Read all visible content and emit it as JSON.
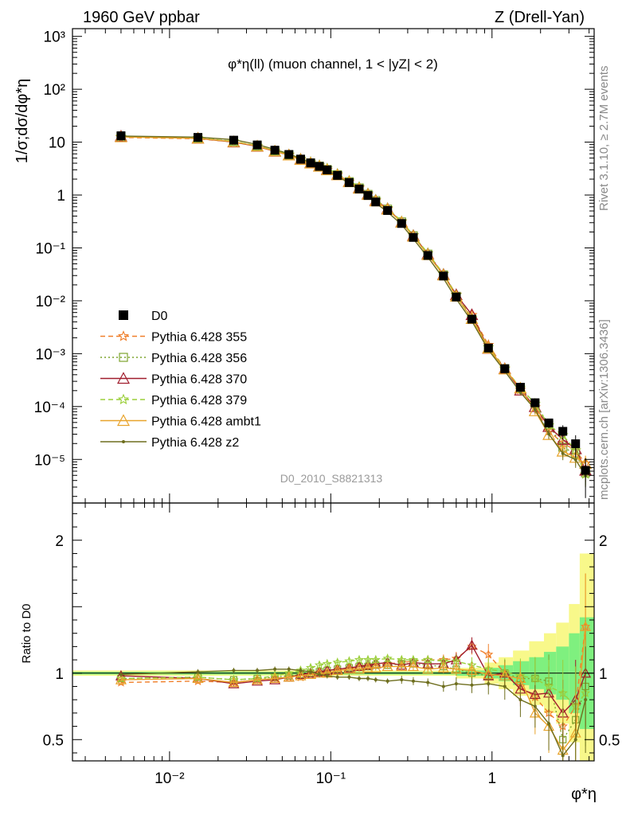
{
  "header": {
    "left": "1960 GeV ppbar",
    "right": "Z (Drell-Yan)"
  },
  "side": {
    "rivet": "Rivet 3.1.10, ≥ 2.7M events",
    "site": "mcplots.cern.ch [arXiv:1306.3436]"
  },
  "chart_data": {
    "type": "line",
    "title": "φ*η(ll) (muon channel, 1 < |yZ| < 2)",
    "analysis": "D0_2010_S8821313",
    "xlabel": "φ*η",
    "ylabel": "1/σ;dσ/dφ*η",
    "ratio_ylabel": "Ratio to D0",
    "xscale": "log",
    "yscale": "log",
    "xlim": [
      0.0025,
      4.3
    ],
    "ylim": [
      1.5e-06,
      1400
    ],
    "ratio_ylim": [
      0.34,
      2.28
    ],
    "xticks": [
      "10⁻²",
      "10⁻¹",
      "1"
    ],
    "yticks": [
      "10³",
      "10²",
      "10",
      "1",
      "10⁻¹",
      "10⁻²",
      "10⁻³",
      "10⁻⁴",
      "10⁻⁵"
    ],
    "ratio_yticks": [
      "2",
      "1",
      "0.5"
    ],
    "legend_position": "bottom-left",
    "x": [
      0.005,
      0.015,
      0.025,
      0.035,
      0.045,
      0.055,
      0.065,
      0.075,
      0.085,
      0.095,
      0.11,
      0.13,
      0.15,
      0.17,
      0.19,
      0.225,
      0.275,
      0.325,
      0.4,
      0.5,
      0.6,
      0.75,
      0.95,
      1.2,
      1.5,
      1.85,
      2.25,
      2.75,
      3.3,
      3.8
    ],
    "series": [
      {
        "name": "D0",
        "color": "#000000",
        "marker": "square",
        "values": [
          13.2,
          12.3,
          10.9,
          8.85,
          7.05,
          5.85,
          4.78,
          4.05,
          3.48,
          2.98,
          2.35,
          1.72,
          1.3,
          0.98,
          0.74,
          0.51,
          0.29,
          0.158,
          0.072,
          0.0294,
          0.0118,
          0.0045,
          0.00128,
          0.00052,
          0.000232,
          0.000118,
          4.9e-05,
          3.4e-05,
          1.98e-05,
          6.2e-06
        ],
        "error_rel": [
          0.03,
          0.03,
          0.03,
          0.03,
          0.03,
          0.03,
          0.03,
          0.03,
          0.03,
          0.03,
          0.03,
          0.03,
          0.03,
          0.03,
          0.03,
          0.03,
          0.03,
          0.03,
          0.04,
          0.04,
          0.05,
          0.05,
          0.07,
          0.08,
          0.12,
          0.15,
          0.2,
          0.3,
          0.45,
          0.7
        ]
      },
      {
        "name": "Pythia 6.428 355",
        "color": "#f07f2a",
        "marker": "star",
        "dash": "6,4",
        "ratio": [
          0.93,
          0.94,
          0.93,
          0.95,
          0.96,
          0.97,
          0.97,
          0.99,
          1.0,
          1.0,
          1.02,
          1.03,
          1.05,
          1.05,
          1.06,
          1.07,
          1.08,
          1.09,
          1.1,
          1.1,
          1.11,
          1.2,
          1.14,
          1.0,
          0.9,
          0.82,
          0.7,
          0.6,
          0.75,
          1.35
        ],
        "ratio_err": [
          0.02,
          0.02,
          0.02,
          0.02,
          0.02,
          0.02,
          0.02,
          0.02,
          0.02,
          0.02,
          0.02,
          0.02,
          0.02,
          0.02,
          0.02,
          0.02,
          0.03,
          0.03,
          0.03,
          0.04,
          0.05,
          0.06,
          0.08,
          0.1,
          0.13,
          0.16,
          0.2,
          0.25,
          0.3,
          0.4
        ]
      },
      {
        "name": "Pythia 6.428 356",
        "color": "#7da32d",
        "marker": "square-open",
        "dash": "2,3",
        "ratio": [
          0.96,
          0.97,
          0.95,
          0.96,
          0.97,
          0.98,
          0.99,
          1.0,
          1.01,
          1.02,
          1.03,
          1.04,
          1.05,
          1.05,
          1.06,
          1.06,
          1.07,
          1.07,
          1.06,
          1.05,
          1.03,
          1.0,
          0.98,
          1.0,
          0.96,
          0.96,
          0.94,
          0.5,
          0.65,
          0.9
        ],
        "ratio_err": [
          0.02,
          0.02,
          0.02,
          0.02,
          0.02,
          0.02,
          0.02,
          0.02,
          0.02,
          0.02,
          0.02,
          0.02,
          0.02,
          0.02,
          0.02,
          0.02,
          0.03,
          0.03,
          0.03,
          0.04,
          0.05,
          0.06,
          0.08,
          0.1,
          0.13,
          0.16,
          0.2,
          0.25,
          0.3,
          0.4
        ]
      },
      {
        "name": "Pythia 6.428 370",
        "color": "#a01c2c",
        "marker": "triangle-open",
        "dash": "",
        "ratio": [
          0.98,
          0.96,
          0.92,
          0.94,
          0.95,
          0.97,
          0.99,
          1.0,
          1.01,
          1.02,
          1.03,
          1.04,
          1.05,
          1.06,
          1.07,
          1.08,
          1.06,
          1.08,
          1.07,
          1.07,
          1.1,
          1.21,
          0.98,
          1.0,
          0.88,
          0.84,
          0.85,
          0.7,
          0.8,
          1.0
        ],
        "ratio_err": [
          0.02,
          0.02,
          0.02,
          0.02,
          0.02,
          0.02,
          0.02,
          0.02,
          0.02,
          0.02,
          0.02,
          0.02,
          0.02,
          0.02,
          0.02,
          0.02,
          0.03,
          0.03,
          0.03,
          0.04,
          0.05,
          0.06,
          0.08,
          0.1,
          0.13,
          0.16,
          0.2,
          0.25,
          0.3,
          0.4
        ]
      },
      {
        "name": "Pythia 6.428 379",
        "color": "#9bcf3a",
        "marker": "star",
        "dash": "6,4",
        "ratio": [
          0.96,
          0.97,
          0.95,
          0.96,
          0.98,
          1.0,
          1.02,
          1.04,
          1.06,
          1.07,
          1.08,
          1.09,
          1.1,
          1.1,
          1.1,
          1.11,
          1.1,
          1.1,
          1.1,
          1.09,
          1.09,
          1.06,
          1.03,
          1.01,
          0.98,
          0.96,
          0.9,
          0.85,
          0.75,
          0.85
        ],
        "ratio_err": [
          0.02,
          0.02,
          0.02,
          0.02,
          0.02,
          0.02,
          0.02,
          0.02,
          0.02,
          0.02,
          0.02,
          0.02,
          0.02,
          0.02,
          0.02,
          0.02,
          0.03,
          0.03,
          0.03,
          0.04,
          0.05,
          0.06,
          0.08,
          0.1,
          0.13,
          0.16,
          0.2,
          0.25,
          0.3,
          0.4
        ]
      },
      {
        "name": "Pythia 6.428 ambt1",
        "color": "#e8a32a",
        "marker": "triangle-open",
        "dash": "",
        "ratio": [
          0.95,
          0.96,
          0.93,
          0.95,
          0.96,
          0.97,
          0.98,
          0.99,
          1.0,
          1.0,
          1.02,
          1.03,
          1.03,
          1.04,
          1.04,
          1.05,
          1.05,
          1.05,
          1.03,
          1.04,
          1.03,
          1.02,
          0.99,
          0.98,
          0.96,
          0.7,
          0.6,
          0.42,
          0.55,
          1.35
        ],
        "ratio_err": [
          0.02,
          0.02,
          0.02,
          0.02,
          0.02,
          0.02,
          0.02,
          0.02,
          0.02,
          0.02,
          0.02,
          0.02,
          0.02,
          0.02,
          0.02,
          0.02,
          0.03,
          0.03,
          0.03,
          0.04,
          0.05,
          0.06,
          0.08,
          0.1,
          0.13,
          0.16,
          0.2,
          0.25,
          0.3,
          0.4
        ]
      },
      {
        "name": "Pythia 6.428 z2",
        "color": "#6e6e1e",
        "marker": "dot",
        "dash": "",
        "ratio": [
          0.99,
          1.01,
          1.02,
          1.02,
          1.03,
          1.03,
          1.02,
          1.01,
          0.99,
          0.98,
          0.97,
          0.97,
          0.96,
          0.96,
          0.95,
          0.94,
          0.95,
          0.94,
          0.93,
          0.9,
          0.92,
          0.91,
          0.92,
          0.9,
          0.8,
          0.75,
          0.62,
          0.38,
          0.5,
          0.8
        ],
        "ratio_err": [
          0.02,
          0.02,
          0.02,
          0.02,
          0.02,
          0.02,
          0.02,
          0.02,
          0.02,
          0.02,
          0.02,
          0.02,
          0.02,
          0.02,
          0.02,
          0.02,
          0.03,
          0.03,
          0.03,
          0.04,
          0.05,
          0.06,
          0.08,
          0.1,
          0.13,
          0.16,
          0.2,
          0.25,
          0.3,
          0.4
        ]
      }
    ],
    "bands": {
      "inner_color": "#7ff07f",
      "outer_color": "#f8f88a",
      "x_edges": [
        0.0025,
        0.6,
        0.9,
        1.1,
        1.35,
        1.7,
        2.1,
        2.5,
        3.0,
        3.5,
        4.3
      ],
      "inner_halfwidth": [
        0.01,
        0.02,
        0.04,
        0.06,
        0.09,
        0.12,
        0.16,
        0.2,
        0.3,
        0.42
      ],
      "outer_halfwidth": [
        0.02,
        0.04,
        0.08,
        0.12,
        0.17,
        0.24,
        0.3,
        0.38,
        0.52,
        0.9
      ]
    }
  }
}
